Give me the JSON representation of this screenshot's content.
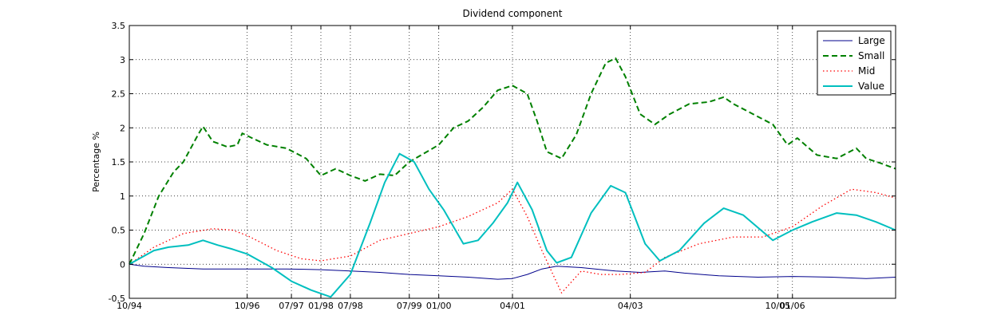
{
  "chart_data": {
    "type": "line",
    "title": "Dividend component",
    "xlabel": "",
    "ylabel": "Percentage %",
    "xlim": [
      "1994-10",
      "2007-10"
    ],
    "ylim": [
      -0.5,
      3.5
    ],
    "yticks": [
      -0.5,
      0,
      0.5,
      1,
      1.5,
      2,
      2.5,
      3,
      3.5
    ],
    "ytick_labels": [
      "-0.5",
      "0",
      "0.5",
      "1",
      "1.5",
      "2",
      "2.5",
      "3",
      "3.5"
    ],
    "xticks": [
      "1994-10",
      "1996-10",
      "1997-07",
      "1998-01",
      "1998-07",
      "1999-07",
      "2000-01",
      "2001-04",
      "2003-04",
      "2005-10",
      "2006-01"
    ],
    "xtick_labels": [
      "10/94",
      "10/96",
      "07/97",
      "01/98",
      "07/98",
      "07/99",
      "01/00",
      "04/01",
      "04/03",
      "10/05",
      "01/06"
    ],
    "grid": true,
    "legend_position": "top-right",
    "series": [
      {
        "name": "Large",
        "color": "#00008B",
        "style": "solid",
        "points": [
          [
            "1994-10",
            0
          ],
          [
            "1995-01",
            -0.03
          ],
          [
            "1995-06",
            -0.05
          ],
          [
            "1996-01",
            -0.07
          ],
          [
            "1996-10",
            -0.07
          ],
          [
            "1997-06",
            -0.07
          ],
          [
            "1998-01",
            -0.08
          ],
          [
            "1998-07",
            -0.1
          ],
          [
            "1999-01",
            -0.12
          ],
          [
            "1999-07",
            -0.15
          ],
          [
            "2000-01",
            -0.17
          ],
          [
            "2000-07",
            -0.19
          ],
          [
            "2001-01",
            -0.22
          ],
          [
            "2001-04",
            -0.21
          ],
          [
            "2001-07",
            -0.15
          ],
          [
            "2001-10",
            -0.07
          ],
          [
            "2002-01",
            -0.03
          ],
          [
            "2002-06",
            -0.05
          ],
          [
            "2003-01",
            -0.1
          ],
          [
            "2003-06",
            -0.12
          ],
          [
            "2003-11",
            -0.1
          ],
          [
            "2004-03",
            -0.13
          ],
          [
            "2004-10",
            -0.17
          ],
          [
            "2005-06",
            -0.19
          ],
          [
            "2006-01",
            -0.18
          ],
          [
            "2006-09",
            -0.19
          ],
          [
            "2007-04",
            -0.21
          ],
          [
            "2007-10",
            -0.19
          ]
        ]
      },
      {
        "name": "Small",
        "color": "#008000",
        "style": "dashed",
        "points": [
          [
            "1994-10",
            0
          ],
          [
            "1995-01",
            0.45
          ],
          [
            "1995-04",
            1.0
          ],
          [
            "1995-07",
            1.35
          ],
          [
            "1995-09",
            1.5
          ],
          [
            "1995-12",
            1.9
          ],
          [
            "1996-01",
            2.02
          ],
          [
            "1996-03",
            1.8
          ],
          [
            "1996-06",
            1.72
          ],
          [
            "1996-08",
            1.75
          ],
          [
            "1996-09",
            1.92
          ],
          [
            "1996-11",
            1.85
          ],
          [
            "1997-02",
            1.75
          ],
          [
            "1997-06",
            1.7
          ],
          [
            "1997-10",
            1.55
          ],
          [
            "1998-01",
            1.3
          ],
          [
            "1998-04",
            1.4
          ],
          [
            "1998-07",
            1.3
          ],
          [
            "1998-10",
            1.22
          ],
          [
            "1999-01",
            1.32
          ],
          [
            "1999-04",
            1.3
          ],
          [
            "1999-07",
            1.5
          ],
          [
            "2000-01",
            1.75
          ],
          [
            "2000-04",
            2.0
          ],
          [
            "2000-07",
            2.1
          ],
          [
            "2000-10",
            2.3
          ],
          [
            "2001-01",
            2.55
          ],
          [
            "2001-04",
            2.62
          ],
          [
            "2001-07",
            2.5
          ],
          [
            "2001-09",
            2.1
          ],
          [
            "2001-11",
            1.65
          ],
          [
            "2002-02",
            1.55
          ],
          [
            "2002-05",
            1.9
          ],
          [
            "2002-08",
            2.5
          ],
          [
            "2002-11",
            2.95
          ],
          [
            "2003-01",
            3.02
          ],
          [
            "2003-03",
            2.75
          ],
          [
            "2003-06",
            2.2
          ],
          [
            "2003-09",
            2.05
          ],
          [
            "2003-12",
            2.2
          ],
          [
            "2004-04",
            2.35
          ],
          [
            "2004-08",
            2.38
          ],
          [
            "2004-11",
            2.45
          ],
          [
            "2005-01",
            2.35
          ],
          [
            "2005-05",
            2.2
          ],
          [
            "2005-09",
            2.05
          ],
          [
            "2005-12",
            1.75
          ],
          [
            "2006-02",
            1.85
          ],
          [
            "2006-06",
            1.6
          ],
          [
            "2006-10",
            1.55
          ],
          [
            "2007-02",
            1.7
          ],
          [
            "2007-04",
            1.55
          ],
          [
            "2007-07",
            1.48
          ],
          [
            "2007-10",
            1.4
          ]
        ]
      },
      {
        "name": "Mid",
        "color": "#FF0000",
        "style": "dotted",
        "points": [
          [
            "1994-10",
            0
          ],
          [
            "1995-03",
            0.25
          ],
          [
            "1995-09",
            0.45
          ],
          [
            "1996-03",
            0.52
          ],
          [
            "1996-07",
            0.5
          ],
          [
            "1996-10",
            0.42
          ],
          [
            "1997-04",
            0.2
          ],
          [
            "1997-09",
            0.08
          ],
          [
            "1998-01",
            0.05
          ],
          [
            "1998-07",
            0.12
          ],
          [
            "1999-01",
            0.35
          ],
          [
            "1999-07",
            0.45
          ],
          [
            "2000-01",
            0.55
          ],
          [
            "2000-07",
            0.7
          ],
          [
            "2001-01",
            0.9
          ],
          [
            "2001-04",
            1.1
          ],
          [
            "2001-07",
            0.7
          ],
          [
            "2001-10",
            0.2
          ],
          [
            "2002-02",
            -0.42
          ],
          [
            "2002-06",
            -0.1
          ],
          [
            "2002-10",
            -0.15
          ],
          [
            "2003-02",
            -0.15
          ],
          [
            "2003-07",
            -0.12
          ],
          [
            "2003-11",
            0.1
          ],
          [
            "2004-06",
            0.3
          ],
          [
            "2005-01",
            0.4
          ],
          [
            "2005-07",
            0.4
          ],
          [
            "2006-01",
            0.55
          ],
          [
            "2006-07",
            0.85
          ],
          [
            "2007-01",
            1.1
          ],
          [
            "2007-06",
            1.05
          ],
          [
            "2007-10",
            0.97
          ]
        ]
      },
      {
        "name": "Value",
        "color": "#00BFBF",
        "style": "solid",
        "points": [
          [
            "1994-10",
            0
          ],
          [
            "1995-03",
            0.2
          ],
          [
            "1995-06",
            0.25
          ],
          [
            "1995-10",
            0.28
          ],
          [
            "1996-01",
            0.35
          ],
          [
            "1996-04",
            0.28
          ],
          [
            "1996-07",
            0.22
          ],
          [
            "1996-10",
            0.15
          ],
          [
            "1997-03",
            -0.05
          ],
          [
            "1997-07",
            -0.25
          ],
          [
            "1997-11",
            -0.38
          ],
          [
            "1998-03",
            -0.48
          ],
          [
            "1998-07",
            -0.15
          ],
          [
            "1998-11",
            0.6
          ],
          [
            "1999-02",
            1.2
          ],
          [
            "1999-05",
            1.62
          ],
          [
            "1999-08",
            1.5
          ],
          [
            "1999-11",
            1.1
          ],
          [
            "2000-02",
            0.8
          ],
          [
            "2000-06",
            0.3
          ],
          [
            "2000-09",
            0.35
          ],
          [
            "2000-12",
            0.6
          ],
          [
            "2001-03",
            0.9
          ],
          [
            "2001-05",
            1.2
          ],
          [
            "2001-08",
            0.8
          ],
          [
            "2001-11",
            0.2
          ],
          [
            "2002-01",
            0.02
          ],
          [
            "2002-04",
            0.1
          ],
          [
            "2002-08",
            0.75
          ],
          [
            "2002-12",
            1.15
          ],
          [
            "2003-03",
            1.05
          ],
          [
            "2003-07",
            0.3
          ],
          [
            "2003-10",
            0.05
          ],
          [
            "2004-02",
            0.2
          ],
          [
            "2004-07",
            0.6
          ],
          [
            "2004-11",
            0.82
          ],
          [
            "2005-03",
            0.72
          ],
          [
            "2005-09",
            0.35
          ],
          [
            "2006-01",
            0.5
          ],
          [
            "2006-05",
            0.62
          ],
          [
            "2006-10",
            0.75
          ],
          [
            "2007-02",
            0.72
          ],
          [
            "2007-06",
            0.62
          ],
          [
            "2007-10",
            0.5
          ]
        ]
      }
    ]
  }
}
